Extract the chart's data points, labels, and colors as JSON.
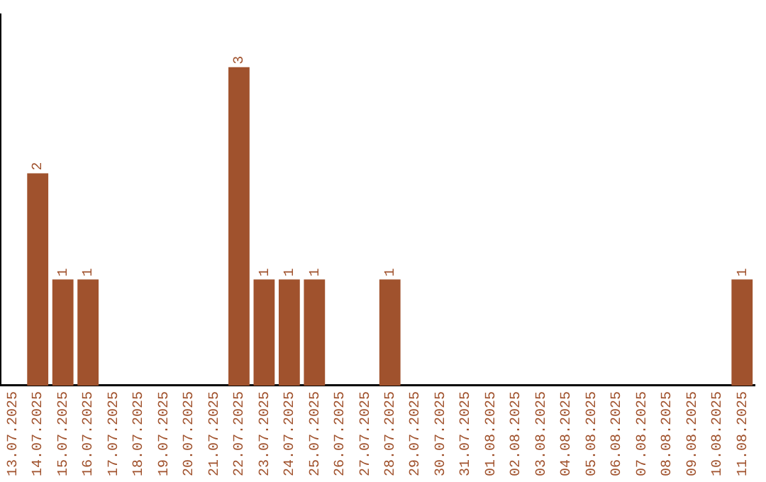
{
  "chart_data": {
    "type": "bar",
    "categories": [
      "13.07.2025",
      "14.07.2025",
      "15.07.2025",
      "16.07.2025",
      "17.07.2025",
      "18.07.2025",
      "19.07.2025",
      "20.07.2025",
      "21.07.2025",
      "22.07.2025",
      "23.07.2025",
      "24.07.2025",
      "25.07.2025",
      "26.07.2025",
      "27.07.2025",
      "28.07.2025",
      "29.07.2025",
      "30.07.2025",
      "31.07.2025",
      "01.08.2025",
      "02.08.2025",
      "03.08.2025",
      "04.08.2025",
      "05.08.2025",
      "06.08.2025",
      "07.08.2025",
      "08.08.2025",
      "09.08.2025",
      "10.08.2025",
      "11.08.2025"
    ],
    "values": [
      0,
      2,
      1,
      1,
      0,
      0,
      0,
      0,
      0,
      3,
      1,
      1,
      1,
      0,
      0,
      1,
      0,
      0,
      0,
      0,
      0,
      0,
      0,
      0,
      0,
      0,
      0,
      0,
      0,
      1
    ],
    "value_labels": [
      null,
      "2",
      "1",
      "1",
      null,
      null,
      null,
      null,
      null,
      "3",
      "1",
      "1",
      "1",
      null,
      null,
      "1",
      null,
      null,
      null,
      null,
      null,
      null,
      null,
      null,
      null,
      null,
      null,
      null,
      null,
      "1"
    ],
    "color": "#a0522d",
    "grid": false,
    "legend": false,
    "tick_labels": "x"
  }
}
